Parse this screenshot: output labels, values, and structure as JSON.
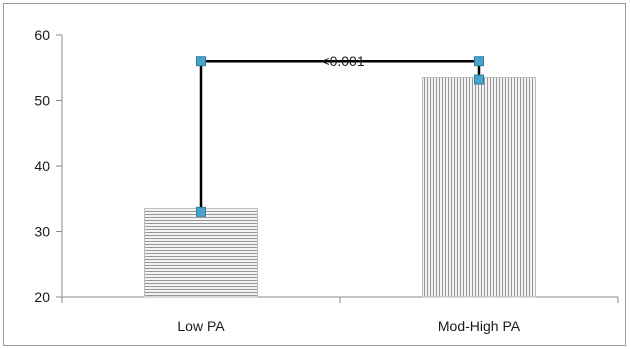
{
  "chart_data": {
    "type": "bar",
    "categories": [
      "Low PA",
      "Mod-High PA"
    ],
    "values": [
      33.5,
      53.5
    ],
    "error_markers": [
      33.0,
      53.2
    ],
    "ylim": [
      20,
      60
    ],
    "yticks": [
      20,
      30,
      40,
      50,
      60
    ],
    "title": "",
    "xlabel": "",
    "ylabel": "",
    "grid": false,
    "annotation": {
      "text": "<0.001",
      "bracket_y": 56
    },
    "colors": {
      "bar_fill": "#f4f4f4",
      "bar_hatch": "#8c8c8c",
      "bracket": "#000000",
      "marker": "#4aa3c8",
      "axis": "#8a8a8a"
    }
  }
}
